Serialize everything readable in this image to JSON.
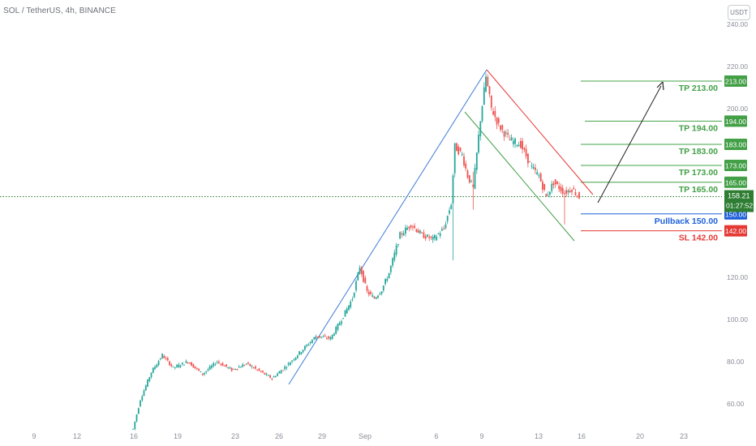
{
  "header": {
    "symbol_title": "SOL / TetherUS, 4h, BINANCE",
    "currency_button": "USDT"
  },
  "colors": {
    "up": "#26a69a",
    "down": "#ef5350",
    "tp": "#43a047",
    "pullback": "#1e60d8",
    "sl": "#e53935",
    "last_price": "#2e7d32",
    "channel_up": "#3f7ad8",
    "axis_text": "#8a8e99"
  },
  "chart_data": {
    "type": "candlestick",
    "title": "SOL / TetherUS, 4h, BINANCE",
    "x_ticks": [
      "9",
      "12",
      "16",
      "19",
      "23",
      "26",
      "29",
      "Sep",
      "6",
      "9",
      "13",
      "16",
      "20",
      "23"
    ],
    "y_ticks": [
      60,
      80,
      100,
      120,
      200,
      220,
      240
    ],
    "y_tick_labels": [
      "60.00",
      "80.00",
      "100.00",
      "120.00",
      "200.00",
      "220.00",
      "240.00"
    ],
    "ylim": [
      48,
      242
    ],
    "grid": false,
    "price_pivots": [
      [
        0,
        48
      ],
      [
        4,
        62
      ],
      [
        10,
        75
      ],
      [
        16,
        83
      ],
      [
        22,
        77
      ],
      [
        30,
        80
      ],
      [
        38,
        74
      ],
      [
        46,
        80
      ],
      [
        54,
        76
      ],
      [
        62,
        79
      ],
      [
        70,
        75
      ],
      [
        76,
        72
      ],
      [
        84,
        78
      ],
      [
        92,
        85
      ],
      [
        100,
        92
      ],
      [
        108,
        91
      ],
      [
        114,
        100
      ],
      [
        120,
        110
      ],
      [
        124,
        125
      ],
      [
        128,
        113
      ],
      [
        132,
        110
      ],
      [
        136,
        114
      ],
      [
        140,
        122
      ],
      [
        146,
        140
      ],
      [
        152,
        145
      ],
      [
        158,
        140
      ],
      [
        164,
        138
      ],
      [
        170,
        143
      ],
      [
        174,
        155
      ],
      [
        176,
        182
      ],
      [
        180,
        178
      ],
      [
        183,
        168
      ],
      [
        186,
        162
      ],
      [
        190,
        195
      ],
      [
        193,
        215
      ],
      [
        196,
        200
      ],
      [
        200,
        192
      ],
      [
        206,
        185
      ],
      [
        212,
        183
      ],
      [
        218,
        172
      ],
      [
        222,
        168
      ],
      [
        226,
        158
      ],
      [
        230,
        165
      ],
      [
        236,
        160
      ],
      [
        240,
        162
      ],
      [
        244,
        158
      ]
    ],
    "levels": [
      {
        "label": "TP 213.00",
        "badge": "213.00",
        "value": 213,
        "kind": "tp"
      },
      {
        "label": "TP 194.00",
        "badge": "194.00",
        "value": 194,
        "kind": "tp"
      },
      {
        "label": "TP 183.00",
        "badge": "183.00",
        "value": 183,
        "kind": "tp"
      },
      {
        "label": "TP 173.00",
        "badge": "173.00",
        "value": 173,
        "kind": "tp"
      },
      {
        "label": "TP 165.00",
        "badge": "165.00",
        "value": 165,
        "kind": "tp"
      },
      {
        "label": "Pullback 150.00",
        "badge": "150.00",
        "value": 150,
        "kind": "pullback"
      },
      {
        "label": "SL 142.00",
        "badge": "142.00",
        "value": 142,
        "kind": "sl"
      }
    ],
    "last_price": {
      "price": "158.21",
      "countdown": "01:27:52",
      "value": 158.21
    }
  }
}
